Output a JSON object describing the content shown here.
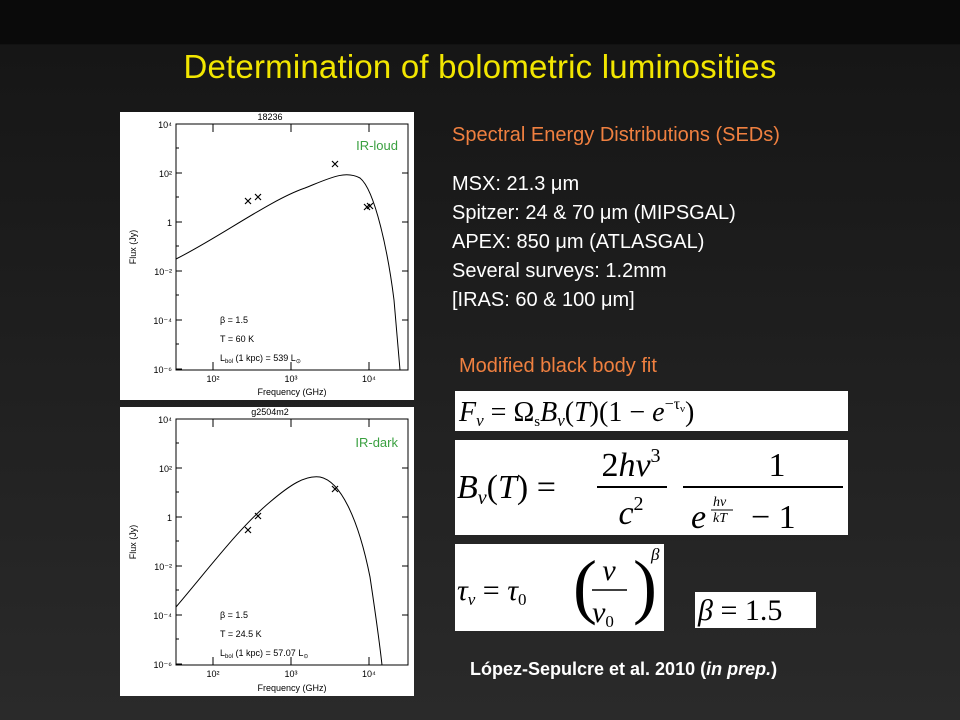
{
  "slide": {
    "title": "Determination of bolometric luminosities",
    "sed_title": "Spectral Energy Distributions (SEDs)",
    "surveys": [
      "MSX: 21.3 μm",
      "Spitzer: 24 & 70 μm (MIPSGAL)",
      "APEX: 850 μm (ATLASGAL)",
      "Several surveys: 1.2mm",
      "[IRAS: 60 & 100 μm]"
    ],
    "fit_title": "Modified black body fit",
    "citation_main": "López-Sepulcre et al. 2010 (",
    "citation_italic": "in prep.",
    "citation_end": ")"
  },
  "equations": {
    "eq1": "F_ν = Ω_s B_ν(T)(1 − e^{−τ_ν})",
    "eq2": "B_ν(T) = (2hν³ / c²) · 1 / (e^{hν/kT} − 1)",
    "eq3": "τ_ν = τ_0 (ν/ν_0)^β",
    "eq4": "β = 1.5"
  },
  "plots": [
    {
      "name": "18236",
      "tag": "IR-loud",
      "ylabel": "Flux (Jy)",
      "xlabel": "Frequency (GHz)",
      "yticks": [
        "10⁴",
        "10²",
        "1",
        "10⁻²",
        "10⁻⁴",
        "10⁻⁶"
      ],
      "xticks": [
        "10²",
        "10³",
        "10⁴"
      ],
      "params": [
        "β = 1.5",
        "T = 60 K"
      ],
      "lbol_prefix": "L",
      "lbol_sub": "bol",
      "lbol_text": " (1 kpc) = 539 L",
      "lbol_sun": "⊙"
    },
    {
      "name": "g2504m2",
      "tag": "IR-dark",
      "ylabel": "Flux (Jy)",
      "xlabel": "Frequency (GHz)",
      "yticks": [
        "10⁴",
        "10²",
        "1",
        "10⁻²",
        "10⁻⁴",
        "10⁻⁶"
      ],
      "xticks": [
        "10²",
        "10³",
        "10⁴"
      ],
      "params": [
        "β = 1.5",
        "T = 24.5 K"
      ],
      "lbol_prefix": "L",
      "lbol_sub": "bol",
      "lbol_text": " (1 kpc) = 57.07 L",
      "lbol_sun": "⊙"
    }
  ]
}
